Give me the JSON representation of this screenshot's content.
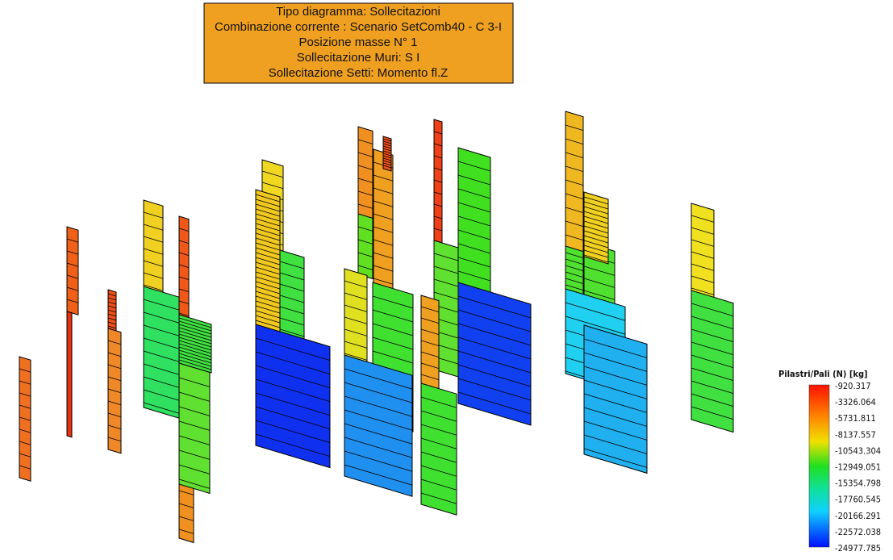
{
  "header": {
    "lines": [
      "Tipo diagramma: Sollecitazioni",
      "Combinazione corrente : Scenario SetComb40 - C 3-I",
      "Posizione masse N° 1",
      "Sollecitazione Muri: S I",
      "Sollecitazione Setti: Momento fl.Z"
    ]
  },
  "legend": {
    "title": "Pilastri/Pali (N) [kg]",
    "labels": [
      "-920.317",
      "-3326.064",
      "-5731.811",
      "-8137.557",
      "-10543.304",
      "-12949.051",
      "-15354.798",
      "-17760.545",
      "-20166.291",
      "-22572.038",
      "-24977.785"
    ]
  }
}
